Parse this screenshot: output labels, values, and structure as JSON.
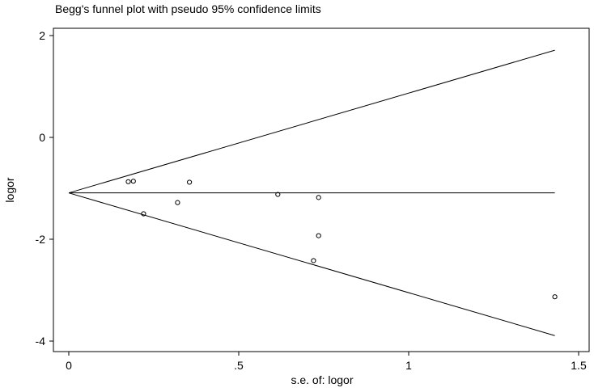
{
  "chart_data": {
    "type": "scatter",
    "title": "Begg's funnel plot with pseudo 95% confidence limits",
    "xlabel": "s.e. of: logor",
    "ylabel": "logor",
    "xlim": [
      0,
      1.5
    ],
    "ylim": [
      -4,
      2
    ],
    "x_ticks": [
      0,
      0.5,
      1,
      1.5
    ],
    "x_tick_labels": [
      "0",
      ".5",
      "1",
      "1.5"
    ],
    "y_ticks": [
      -4,
      -2,
      0,
      2
    ],
    "y_tick_labels": [
      "-4",
      "-2",
      "0",
      "2"
    ],
    "pooled_estimate": -1.09,
    "funnel_se_max": 1.43,
    "grid": false,
    "points": [
      {
        "x": 0.175,
        "y": -0.87
      },
      {
        "x": 0.19,
        "y": -0.86
      },
      {
        "x": 0.22,
        "y": -1.5
      },
      {
        "x": 0.32,
        "y": -1.28
      },
      {
        "x": 0.355,
        "y": -0.88
      },
      {
        "x": 0.615,
        "y": -1.12
      },
      {
        "x": 0.735,
        "y": -1.18
      },
      {
        "x": 0.735,
        "y": -1.93
      },
      {
        "x": 0.72,
        "y": -2.42
      },
      {
        "x": 1.43,
        "y": -3.13
      }
    ]
  }
}
